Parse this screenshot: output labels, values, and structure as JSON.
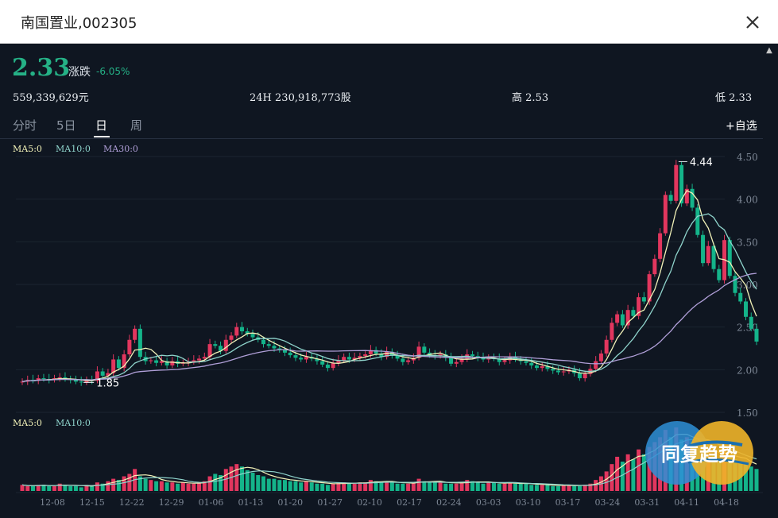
{
  "window": {
    "title": "南国置业,002305"
  },
  "quote": {
    "price": "2.33",
    "change_label": "涨跌",
    "change_pct": "-6.05%",
    "turnover": "559,339,629元",
    "volume_24h_label": "24H",
    "volume_24h": "230,918,773股",
    "high_label": "高",
    "high": "2.53",
    "low_label": "低",
    "low": "2.33"
  },
  "tabs": [
    {
      "label": "分时",
      "active": false
    },
    {
      "label": "5日",
      "active": false
    },
    {
      "label": "日",
      "active": true
    },
    {
      "label": "周",
      "active": false
    }
  ],
  "add_watchlist_label": "+自选",
  "indicators": {
    "ma5": "MA5:0",
    "ma10": "MA10:0",
    "ma30": "MA30:0",
    "vol_ma5": "MA5:0",
    "vol_ma10": "MA10:0"
  },
  "colors": {
    "up": "#e2365e",
    "down": "#14b48a",
    "ma5": "#f2f2b8",
    "ma10": "#8fd4cc",
    "ma30": "#b09fd8",
    "background": "#0f1621"
  },
  "logo_text": "同复趋势",
  "chart_data": {
    "type": "candlestick",
    "y_ticks": [
      "4.50",
      "4.00",
      "3.50",
      "3.00",
      "2.50",
      "2.00",
      "1.50"
    ],
    "ylim": [
      1.5,
      4.5
    ],
    "x_ticks": [
      "12-08",
      "12-15",
      "12-22",
      "12-29",
      "01-06",
      "01-13",
      "01-20",
      "01-27",
      "02-10",
      "02-17",
      "02-24",
      "03-03",
      "03-10",
      "03-17",
      "03-24",
      "03-31",
      "04-11",
      "04-18"
    ],
    "max_label": "4.44",
    "min_label": "1.85",
    "closes": [
      1.86,
      1.88,
      1.87,
      1.9,
      1.89,
      1.88,
      1.9,
      1.91,
      1.89,
      1.88,
      1.86,
      1.85,
      1.88,
      1.87,
      1.98,
      1.93,
      1.96,
      2.12,
      2.02,
      2.18,
      2.35,
      2.48,
      2.15,
      2.1,
      2.11,
      2.08,
      2.1,
      2.05,
      2.1,
      2.07,
      2.08,
      2.09,
      2.11,
      2.13,
      2.15,
      2.3,
      2.28,
      2.22,
      2.35,
      2.4,
      2.5,
      2.45,
      2.42,
      2.38,
      2.35,
      2.3,
      2.28,
      2.25,
      2.23,
      2.2,
      2.17,
      2.14,
      2.12,
      2.15,
      2.13,
      2.1,
      2.06,
      2.02,
      2.08,
      2.11,
      2.15,
      2.12,
      2.14,
      2.16,
      2.18,
      2.23,
      2.19,
      2.15,
      2.21,
      2.17,
      2.13,
      2.09,
      2.11,
      2.14,
      2.27,
      2.2,
      2.17,
      2.16,
      2.18,
      2.14,
      2.07,
      2.09,
      2.13,
      2.18,
      2.16,
      2.14,
      2.12,
      2.14,
      2.13,
      2.09,
      2.11,
      2.15,
      2.12,
      2.1,
      2.08,
      2.05,
      2.02,
      2.04,
      2.01,
      1.99,
      1.97,
      1.98,
      2.0,
      1.96,
      1.9,
      1.95,
      2.01,
      2.1,
      2.19,
      2.35,
      2.55,
      2.65,
      2.52,
      2.7,
      2.63,
      2.85,
      2.8,
      3.12,
      3.3,
      3.6,
      4.05,
      3.98,
      4.4,
      3.95,
      4.12,
      3.9,
      3.58,
      3.25,
      3.45,
      3.18,
      3.05,
      3.52,
      3.1,
      2.9,
      2.8,
      2.62,
      2.48,
      2.33
    ],
    "volumes": [
      5,
      4,
      4,
      5,
      5,
      4,
      4,
      6,
      5,
      4,
      4,
      3,
      5,
      4,
      7,
      6,
      8,
      10,
      9,
      12,
      14,
      18,
      12,
      10,
      9,
      8,
      8,
      7,
      7,
      6,
      7,
      6,
      6,
      7,
      8,
      12,
      14,
      13,
      18,
      20,
      22,
      20,
      17,
      15,
      13,
      12,
      10,
      10,
      9,
      9,
      8,
      8,
      7,
      8,
      7,
      6,
      6,
      5,
      6,
      7,
      7,
      6,
      6,
      7,
      7,
      9,
      8,
      7,
      8,
      7,
      6,
      6,
      6,
      7,
      10,
      8,
      7,
      7,
      8,
      6,
      6,
      6,
      7,
      9,
      8,
      7,
      6,
      7,
      7,
      6,
      6,
      7,
      6,
      6,
      6,
      5,
      5,
      5,
      5,
      4,
      4,
      5,
      5,
      4,
      4,
      5,
      6,
      9,
      12,
      16,
      22,
      28,
      24,
      30,
      26,
      34,
      30,
      36,
      40,
      44,
      50,
      44,
      52,
      42,
      44,
      40,
      36,
      32,
      34,
      30,
      26,
      34,
      28,
      26,
      24,
      22,
      20,
      18
    ],
    "ma5": [],
    "ma10": [],
    "ma30": []
  }
}
